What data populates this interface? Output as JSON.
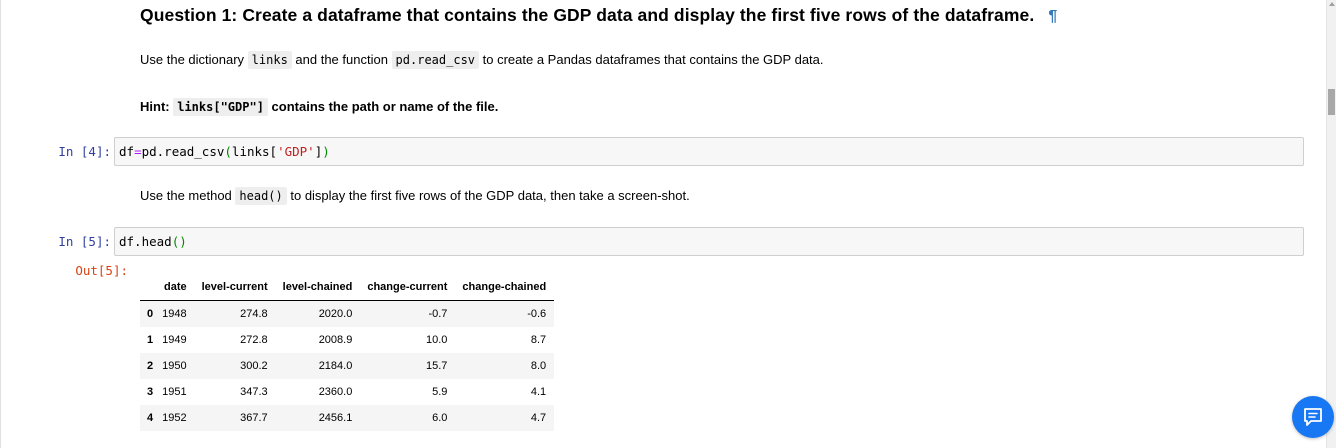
{
  "heading": {
    "text": "Question 1: Create a dataframe that contains the GDP data and display the first five rows of the dataframe.",
    "anchor": "¶"
  },
  "para1": {
    "before": "Use the dictionary ",
    "code1": "links",
    "middle": " and the function ",
    "code2": "pd.read_csv",
    "after": " to create a Pandas dataframes that contains the GDP data."
  },
  "hint": {
    "label": "Hint: ",
    "code": "links[\"GDP\"]",
    "after": " contains the path or name of the file."
  },
  "cell4": {
    "prompt": "In [4]:",
    "code": {
      "t1": "df",
      "t2": "=",
      "t3": "pd.read_csv",
      "t4": "(",
      "t5": "links[",
      "t6": "'GDP'",
      "t7": "]",
      "t8": ")"
    }
  },
  "para2": {
    "before": "Use the method ",
    "code": "head()",
    "after": " to display the first five rows of the GDP data, then take a screen-shot."
  },
  "cell5": {
    "prompt": "In [5]:",
    "code": {
      "t1": "df.head",
      "t2": "()"
    },
    "out_prompt": "Out[5]:"
  },
  "dataframe": {
    "columns": [
      "",
      "date",
      "level-current",
      "level-chained",
      "change-current",
      "change-chained"
    ],
    "rows": [
      {
        "index": "0",
        "date": "1948",
        "level_current": "274.8",
        "level_chained": "2020.0",
        "change_current": "-0.7",
        "change_chained": "-0.6"
      },
      {
        "index": "1",
        "date": "1949",
        "level_current": "272.8",
        "level_chained": "2008.9",
        "change_current": "10.0",
        "change_chained": "8.7"
      },
      {
        "index": "2",
        "date": "1950",
        "level_current": "300.2",
        "level_chained": "2184.0",
        "change_current": "15.7",
        "change_chained": "8.0"
      },
      {
        "index": "3",
        "date": "1951",
        "level_current": "347.3",
        "level_chained": "2360.0",
        "change_current": "5.9",
        "change_chained": "4.1"
      },
      {
        "index": "4",
        "date": "1952",
        "level_current": "367.7",
        "level_chained": "2456.1",
        "change_current": "6.0",
        "change_chained": "4.7"
      }
    ]
  },
  "icons": {
    "anchor": "pilcrow-icon",
    "fab": "chat-icon"
  },
  "colors": {
    "in_prompt": "#303f9f",
    "out_prompt": "#d84315",
    "anchor": "#337ab7",
    "fab": "#1877f2"
  }
}
